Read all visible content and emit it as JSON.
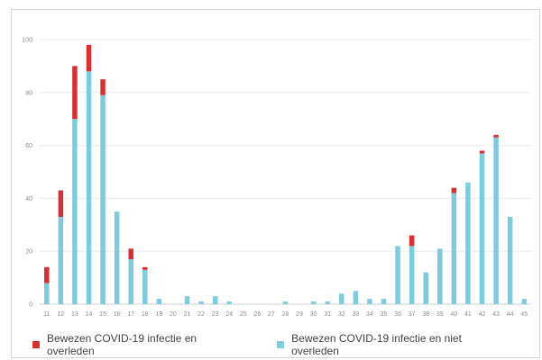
{
  "chart_data": {
    "type": "bar",
    "stacked": true,
    "title": "",
    "xlabel": "",
    "ylabel": "",
    "ylim": [
      0,
      100
    ],
    "yticks": [
      0,
      20,
      40,
      60,
      80,
      100
    ],
    "grid": "horizontal",
    "legend_position": "bottom",
    "categories": [
      "11",
      "12",
      "13",
      "14",
      "15",
      "16",
      "17",
      "18",
      "19",
      "20",
      "21",
      "22",
      "23",
      "24",
      "25",
      "26",
      "27",
      "28",
      "29",
      "30",
      "31",
      "32",
      "33",
      "34",
      "35",
      "36",
      "37",
      "38",
      "39",
      "40",
      "41",
      "42",
      "43",
      "44",
      "45"
    ],
    "series": [
      {
        "name": "Bewezen COVID-19 infectie en niet overleden",
        "color": "#7ecbdf",
        "values": [
          8,
          33,
          70,
          88,
          79,
          35,
          17,
          13,
          2,
          0,
          3,
          1,
          3,
          1,
          0,
          0,
          0,
          1,
          0,
          1,
          1,
          4,
          5,
          2,
          2,
          22,
          22,
          12,
          21,
          42,
          46,
          57,
          63,
          33,
          2
        ]
      },
      {
        "name": "Bewezen COVID-19 infectie en overleden",
        "color": "#d63030",
        "values": [
          6,
          10,
          20,
          10,
          6,
          0,
          4,
          1,
          0,
          0,
          0,
          0,
          0,
          0,
          0,
          0,
          0,
          0,
          0,
          0,
          0,
          0,
          0,
          0,
          0,
          0,
          4,
          0,
          0,
          2,
          0,
          1,
          1,
          0,
          0
        ]
      }
    ]
  },
  "legend": {
    "items": [
      {
        "label": "Bewezen COVID-19 infectie en overleden",
        "color": "#d63030"
      },
      {
        "label": "Bewezen COVID-19 infectie en niet overleden",
        "color": "#7ecbdf"
      }
    ]
  }
}
